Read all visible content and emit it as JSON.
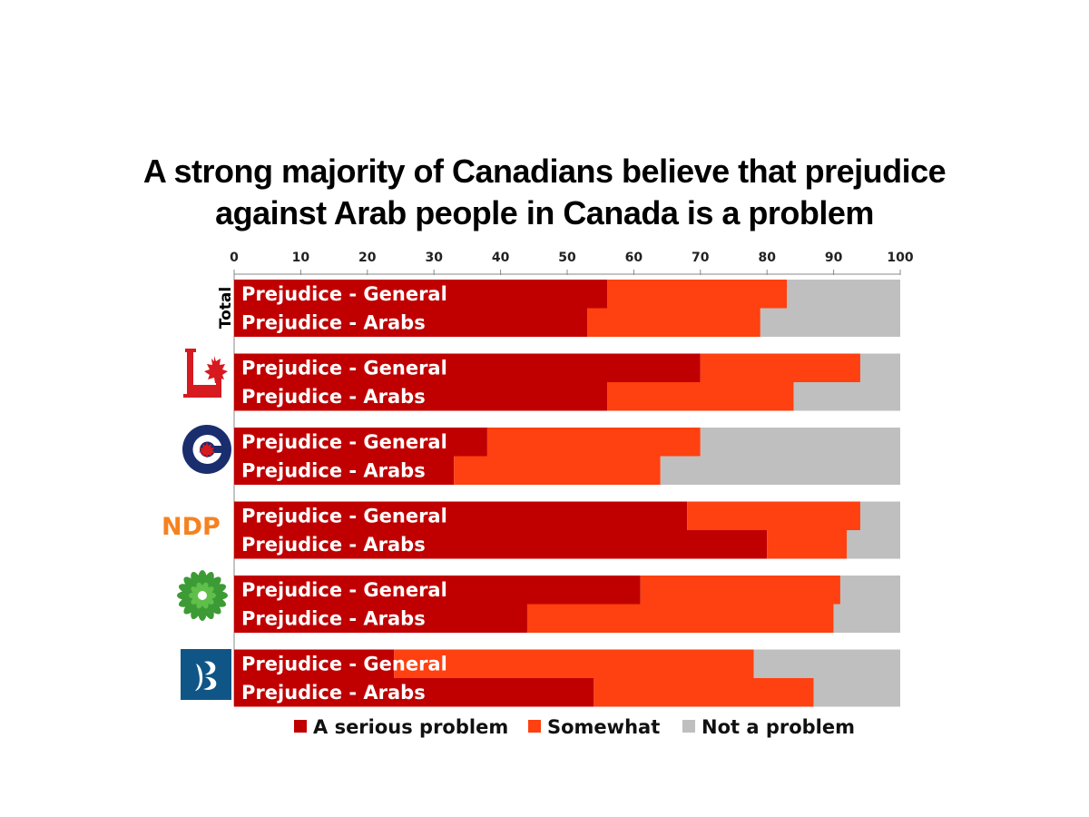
{
  "chart_data": {
    "type": "bar",
    "orientation": "horizontal",
    "stacked": true,
    "title": "A strong majority of Canadians believe that prejudice against Arab people in Canada is a problem",
    "title_lines": [
      "A strong majority of Canadians believe that prejudice",
      "against Arab people in Canada is a problem"
    ],
    "xlim": [
      0,
      100
    ],
    "xticks": [
      0,
      10,
      20,
      30,
      40,
      50,
      60,
      70,
      80,
      90,
      100
    ],
    "series": [
      {
        "name": "A serious problem",
        "color": "#c00000"
      },
      {
        "name": "Somewhat",
        "color": "#ff4010"
      },
      {
        "name": "Not a problem",
        "color": "#bfbfbf"
      }
    ],
    "groups": [
      {
        "label": "Total",
        "logo": "total-text",
        "bars": [
          {
            "label": "Prejudice - General",
            "values": [
              56,
              27,
              17
            ]
          },
          {
            "label": "Prejudice - Arabs",
            "values": [
              53,
              26,
              21
            ]
          }
        ]
      },
      {
        "label": "Liberal",
        "logo": "liberal-logo-icon",
        "bars": [
          {
            "label": "Prejudice - General",
            "values": [
              70,
              24,
              6
            ]
          },
          {
            "label": "Prejudice - Arabs",
            "values": [
              56,
              28,
              16
            ]
          }
        ]
      },
      {
        "label": "Conservative",
        "logo": "conservative-logo-icon",
        "bars": [
          {
            "label": "Prejudice - General",
            "values": [
              38,
              32,
              30
            ]
          },
          {
            "label": "Prejudice - Arabs",
            "values": [
              33,
              31,
              36
            ]
          }
        ]
      },
      {
        "label": "NDP",
        "logo": "ndp-logo-icon",
        "bars": [
          {
            "label": "Prejudice - General",
            "values": [
              68,
              26,
              6
            ]
          },
          {
            "label": "Prejudice - Arabs",
            "values": [
              80,
              12,
              8
            ]
          }
        ]
      },
      {
        "label": "Green",
        "logo": "green-logo-icon",
        "bars": [
          {
            "label": "Prejudice - General",
            "values": [
              61,
              30,
              9
            ]
          },
          {
            "label": "Prejudice - Arabs",
            "values": [
              44,
              46,
              10
            ]
          }
        ]
      },
      {
        "label": "Bloc Québécois",
        "logo": "bloc-logo-icon",
        "bars": [
          {
            "label": "Prejudice - General",
            "values": [
              24,
              54,
              22
            ]
          },
          {
            "label": "Prejudice - Arabs",
            "values": [
              54,
              33,
              13
            ]
          }
        ]
      }
    ],
    "total_group_text": "Total",
    "ndp_logo_text": "NDP",
    "legend_position": "bottom"
  }
}
